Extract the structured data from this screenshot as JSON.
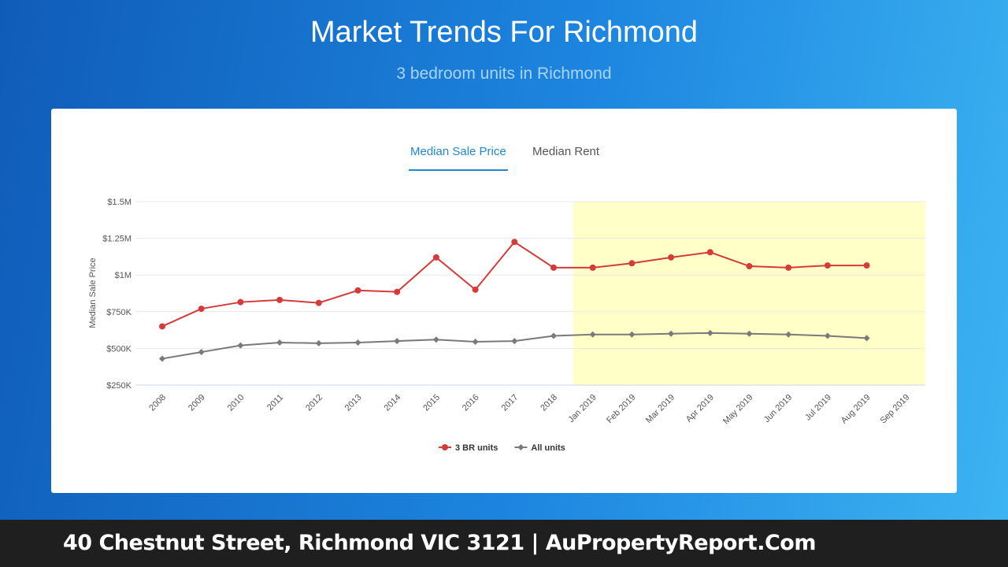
{
  "header": {
    "title": "Market Trends For Richmond",
    "subtitle": "3 bedroom units in Richmond"
  },
  "tabs": [
    "Median Sale Price",
    "Median Rent"
  ],
  "chart_data": {
    "type": "line",
    "y_label": "Median Sale Price",
    "categories": [
      "2008",
      "2009",
      "2010",
      "2011",
      "2012",
      "2013",
      "2014",
      "2015",
      "2016",
      "2017",
      "2018",
      "Jan 2019",
      "Feb 2019",
      "Mar 2019",
      "Apr 2019",
      "May 2019",
      "Jun 2019",
      "Jul 2019",
      "Aug 2019",
      "Sep 2019"
    ],
    "series": [
      {
        "name": "3 BR units",
        "color": "#d63b3b",
        "values": [
          650000,
          770000,
          815000,
          830000,
          810000,
          895000,
          885000,
          1120000,
          900000,
          1225000,
          1050000,
          1050000,
          1080000,
          1120000,
          1155000,
          1060000,
          1050000,
          1065000,
          1065000,
          null
        ]
      },
      {
        "name": "All units",
        "color": "#7a7a7a",
        "values": [
          430000,
          475000,
          520000,
          540000,
          535000,
          540000,
          550000,
          560000,
          545000,
          550000,
          585000,
          595000,
          595000,
          600000,
          605000,
          600000,
          595000,
          585000,
          570000,
          null
        ]
      }
    ],
    "ylim": [
      250000,
      1500000
    ],
    "yticks": [
      {
        "value": 250000,
        "label": "$250K"
      },
      {
        "value": 500000,
        "label": "$500K"
      },
      {
        "value": 750000,
        "label": "$750K"
      },
      {
        "value": 1000000,
        "label": "$1M"
      },
      {
        "value": 1250000,
        "label": "$1.25M"
      },
      {
        "value": 1500000,
        "label": "$1.5M"
      }
    ],
    "grid": true
  },
  "footer": "40 Chestnut Street, Richmond VIC 3121 | AuPropertyReport.Com"
}
